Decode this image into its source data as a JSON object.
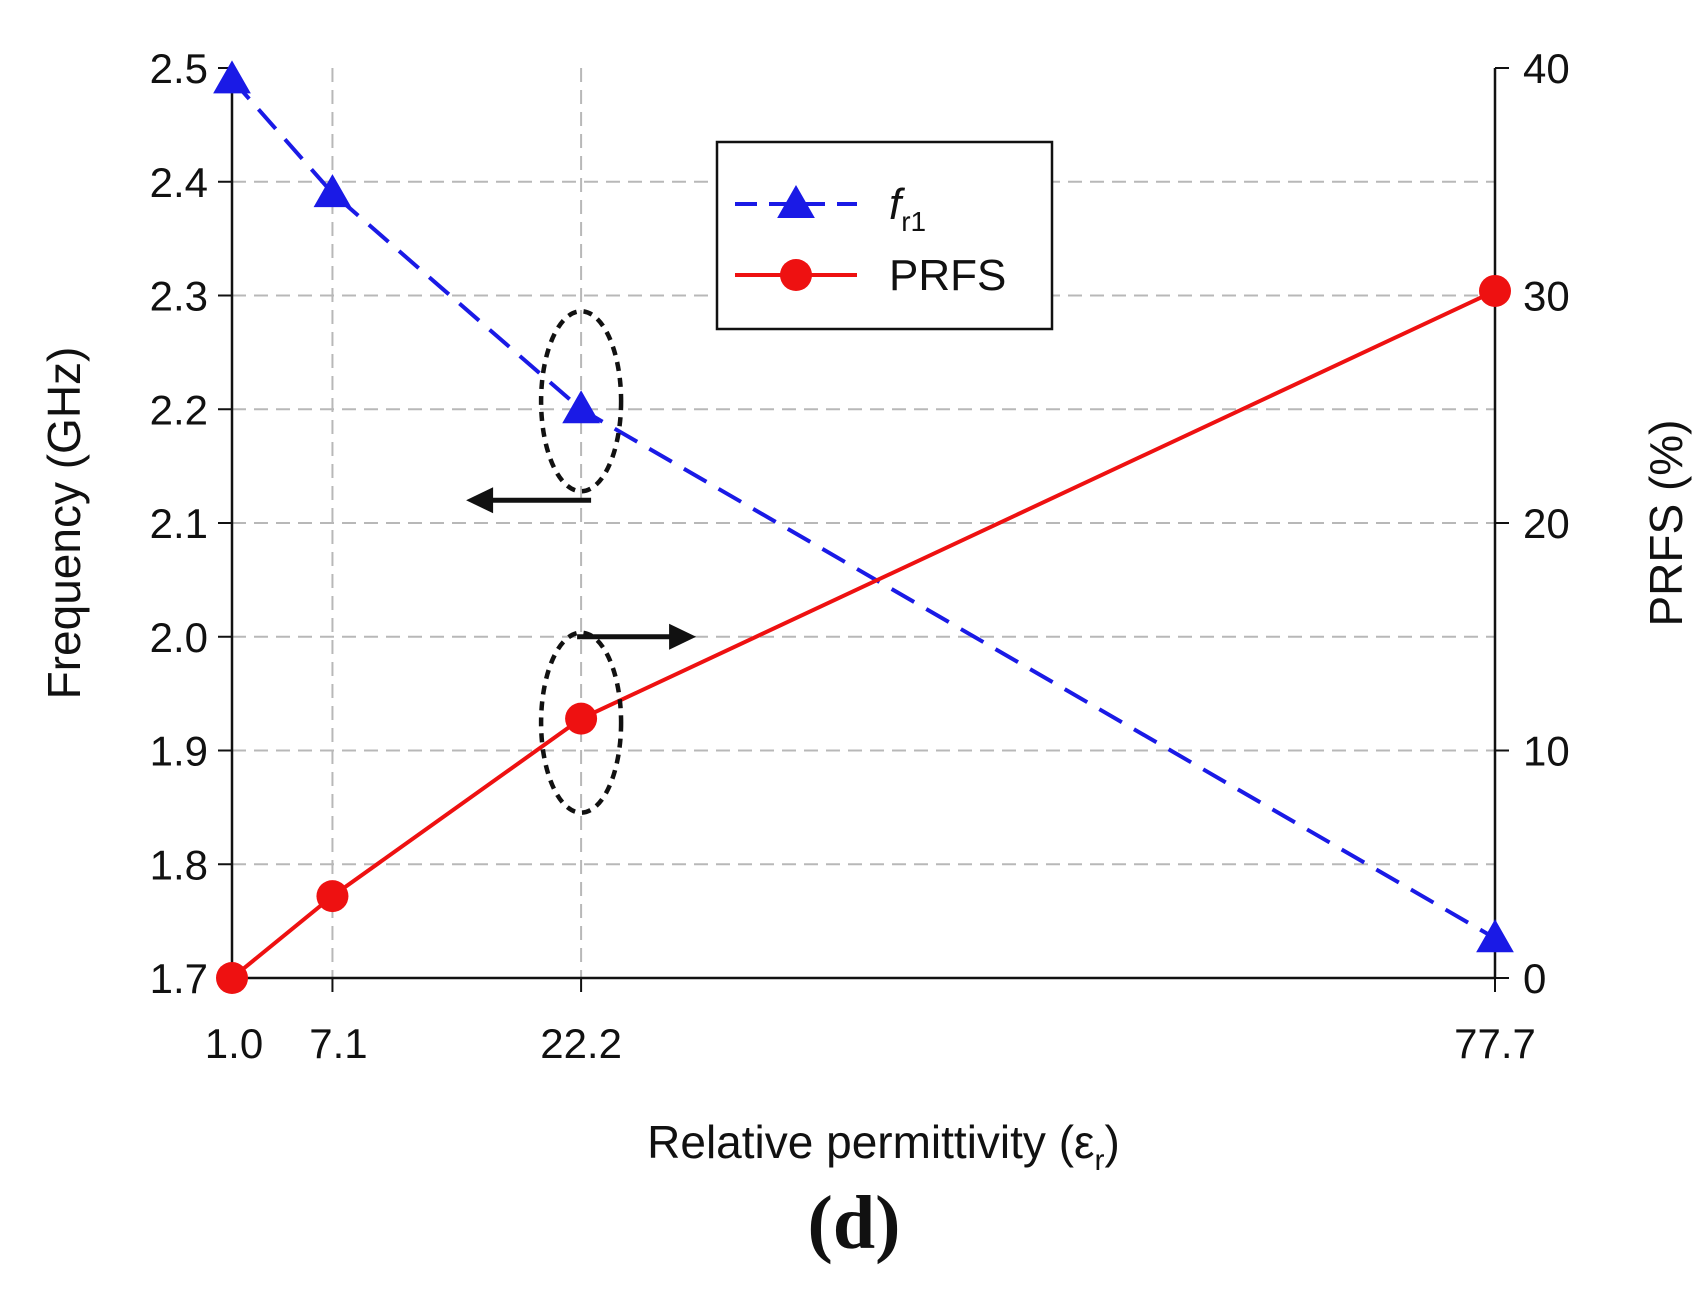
{
  "chart_data": {
    "type": "line",
    "x": [
      1.0,
      7.1,
      22.2,
      77.7
    ],
    "x_tick_labels": [
      "1.0",
      "7.1",
      "22.2",
      "77.7"
    ],
    "xlabel": "Relative permittivity (ε",
    "xlabel_sub": "r",
    "xlabel_close": ")",
    "xlim": [
      1.0,
      77.7
    ],
    "left_axis": {
      "label": "Frequency (GHz)",
      "ylim": [
        1.7,
        2.5
      ],
      "ticks": [
        "1.7",
        "1.8",
        "1.9",
        "2.0",
        "2.1",
        "2.2",
        "2.3",
        "2.4",
        "2.5"
      ]
    },
    "right_axis": {
      "label": "PRFS (%)",
      "ylim": [
        0,
        40
      ],
      "ticks": [
        "0",
        "10",
        "20",
        "30",
        "40"
      ]
    },
    "series": [
      {
        "name": "f",
        "name_sub": "r1",
        "axis": "left",
        "values": [
          2.49,
          2.39,
          2.2,
          1.735
        ],
        "color": "#1a1ae6",
        "style": "dashed",
        "marker": "triangle"
      },
      {
        "name": "PRFS",
        "axis": "right",
        "values": [
          0,
          3.6,
          11.4,
          30.2
        ],
        "color": "#ee1111",
        "style": "solid",
        "marker": "circle"
      }
    ],
    "grid": true,
    "legend_position": "top-center",
    "annotations": [
      "left-pointing arrow with dotted ellipse around f r1 at 22.2",
      "right-pointing arrow with dotted ellipse around PRFS at 22.2"
    ]
  },
  "panel_label": "(d)"
}
